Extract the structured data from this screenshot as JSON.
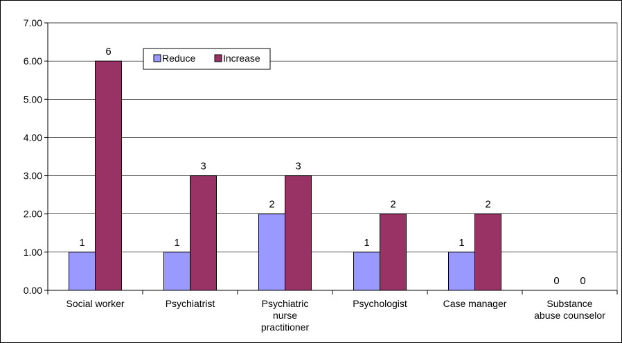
{
  "chart_data": {
    "type": "bar",
    "title": "",
    "xlabel": "",
    "ylabel": "",
    "ylim": [
      0,
      7
    ],
    "yticks": [
      "0.00",
      "1.00",
      "2.00",
      "3.00",
      "4.00",
      "5.00",
      "6.00",
      "7.00"
    ],
    "grid": true,
    "legend_position": "top-left",
    "categories": [
      [
        "Social worker"
      ],
      [
        "Psychiatrist"
      ],
      [
        "Psychiatric",
        "nurse",
        "practitioner"
      ],
      [
        "Psychologist"
      ],
      [
        "Case manager"
      ],
      [
        "Substance",
        "abuse counselor"
      ]
    ],
    "series": [
      {
        "name": "Reduce",
        "color": "#9999ff",
        "values": [
          1,
          1,
          2,
          1,
          1,
          0
        ]
      },
      {
        "name": "Increase",
        "color": "#993366",
        "values": [
          6,
          3,
          3,
          2,
          2,
          0
        ]
      }
    ]
  }
}
